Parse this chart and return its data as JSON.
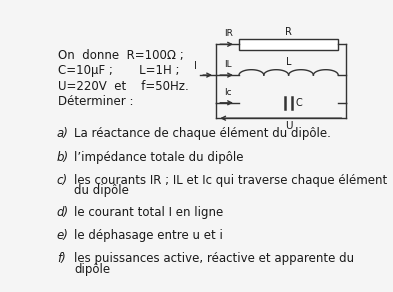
{
  "bg_color": "#f5f5f5",
  "text_color": "#1a1a1a",
  "line1": "On  donne  R=100Ω ;",
  "line2": "C=10μF ;       L=1H ;",
  "line3": "U=220V  et    f=50Hz.",
  "line4": "Déterminer :",
  "item_a_label": "a)",
  "item_a_text": "La réactance de chaque élément du dipôle.",
  "item_b_label": "b)",
  "item_b_text": "l’impédance totale du dipôle",
  "item_c_label": "c)",
  "item_c_text1": "les courants IR ; IL et Ic qui traverse chaque élément",
  "item_c_text2": "du dipôle",
  "item_d_label": "d)",
  "item_d_text": "le courant total I en ligne",
  "item_e_label": "e)",
  "item_e_text": "le déphasage entre u et i",
  "item_f_label": "f)",
  "item_f_text1": "les puissances active, réactive et apparente du",
  "item_f_text2": "dipôle",
  "label_IR": "IR",
  "label_IL": "IL",
  "label_Ic": "Ic",
  "label_I": "I",
  "label_R": "R",
  "label_L": "L",
  "label_C": "C",
  "label_U": "U",
  "wire_color": "#333333",
  "lw": 1.0
}
